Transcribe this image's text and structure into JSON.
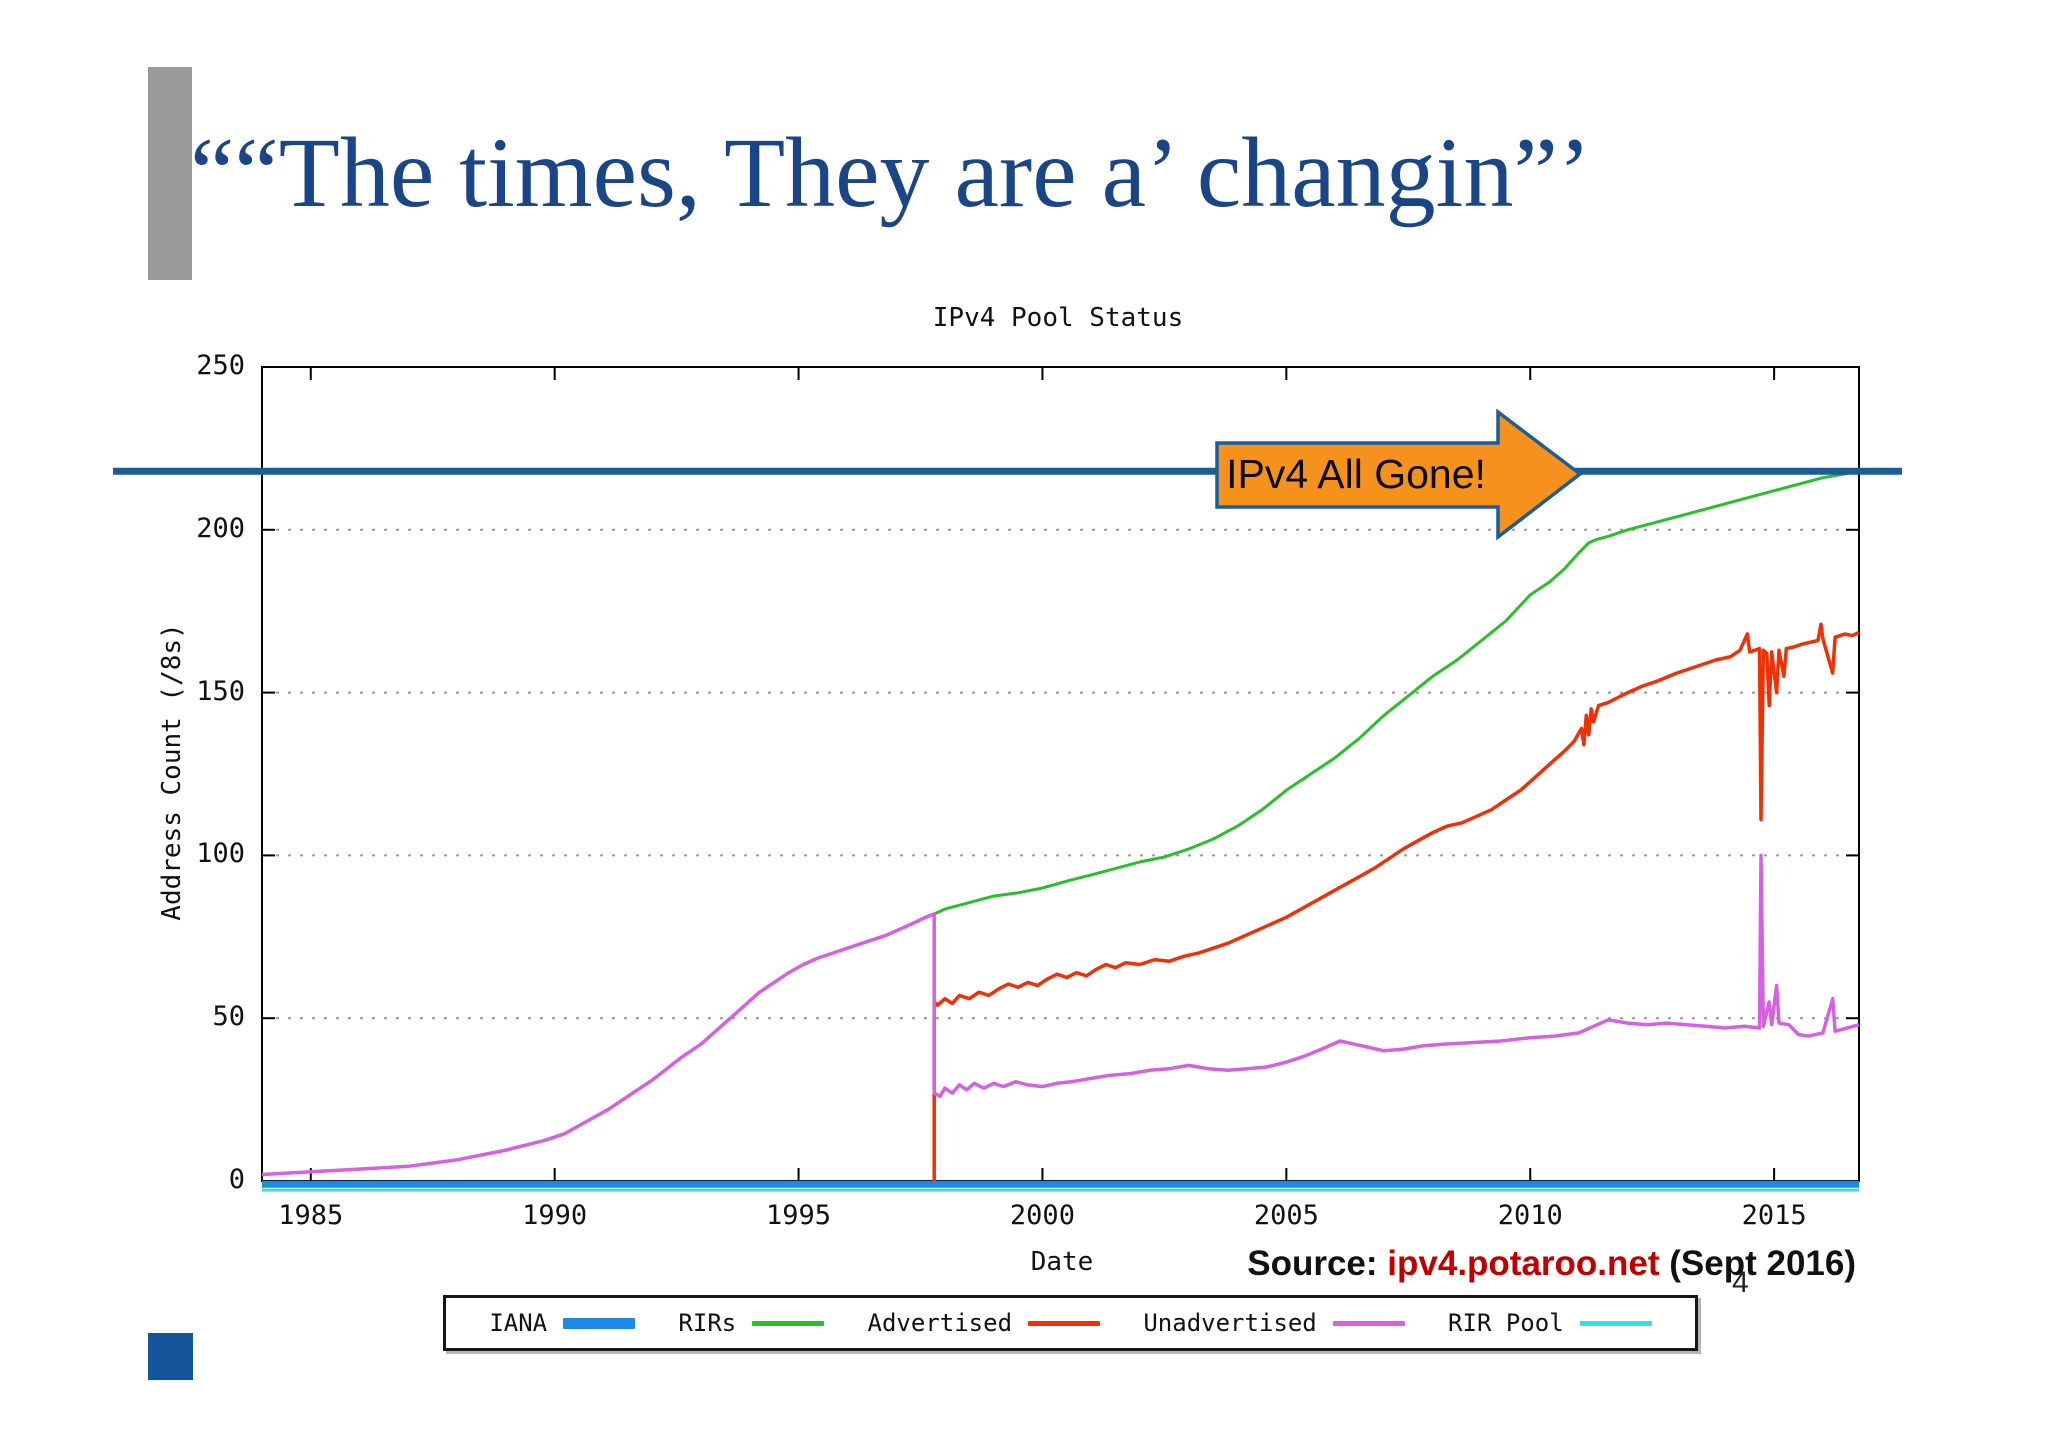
{
  "slide": {
    "title": "““The times, They are a’ changin”’",
    "page_number": "4"
  },
  "source": {
    "prefix": "Source: ",
    "link": "ipv4.potaroo.net",
    "suffix": " (Sept 2016)"
  },
  "annotation": {
    "label": "IPv4 All Gone!",
    "value": 218
  },
  "colors": {
    "title": "#1a4586",
    "annotation_line": "#1d5d96",
    "arrow_fill": "#f5921e",
    "arrow_border": "#1d5d96",
    "source_link": "#c00000",
    "gray_bar": "#9a9a9a",
    "blue_square": "#13549b",
    "grid": "#9a9a9a",
    "frame": "#000000"
  },
  "chart_data": {
    "type": "line",
    "title": "IPv4 Pool Status",
    "xlabel": "Date",
    "ylabel": "Address Count (/8s)",
    "xlim": [
      1984,
      2016.74
    ],
    "ylim": [
      0,
      250
    ],
    "x_ticks": [
      1985,
      1990,
      1995,
      2000,
      2005,
      2010,
      2015
    ],
    "y_ticks": [
      0,
      50,
      100,
      150,
      200,
      250
    ],
    "grid": "horizontal-dashed",
    "legend_position": "bottom",
    "series": [
      {
        "name": "IANA",
        "color": "#1e88e5",
        "width": 7,
        "points": [
          [
            1984,
            -1.0
          ],
          [
            2016.74,
            -1.0
          ]
        ]
      },
      {
        "name": "RIRs",
        "color": "#2abf2a",
        "width": 3,
        "points": [
          [
            1997.78,
            82
          ],
          [
            1998,
            83.5
          ],
          [
            1998.5,
            85.5
          ],
          [
            1999,
            87.5
          ],
          [
            1999.5,
            88.5
          ],
          [
            2000,
            90
          ],
          [
            2000.6,
            92.5
          ],
          [
            2001,
            94
          ],
          [
            2001.5,
            96
          ],
          [
            2002,
            98
          ],
          [
            2002.5,
            99.5
          ],
          [
            2003,
            102
          ],
          [
            2003.5,
            105
          ],
          [
            2004,
            109
          ],
          [
            2004.5,
            114
          ],
          [
            2005,
            120
          ],
          [
            2005.5,
            125
          ],
          [
            2006,
            130
          ],
          [
            2006.5,
            136
          ],
          [
            2007,
            143
          ],
          [
            2007.5,
            149
          ],
          [
            2008,
            155
          ],
          [
            2008.5,
            160
          ],
          [
            2009,
            166
          ],
          [
            2009.5,
            172
          ],
          [
            2010,
            180
          ],
          [
            2010.4,
            184
          ],
          [
            2010.7,
            188
          ],
          [
            2011,
            193
          ],
          [
            2011.2,
            196
          ],
          [
            2011.35,
            197
          ],
          [
            2011.6,
            198
          ],
          [
            2012,
            200
          ],
          [
            2012.5,
            202
          ],
          [
            2013,
            204
          ],
          [
            2013.5,
            206
          ],
          [
            2014,
            208
          ],
          [
            2014.5,
            210
          ],
          [
            2015,
            212
          ],
          [
            2015.5,
            214
          ],
          [
            2016,
            216
          ],
          [
            2016.4,
            217
          ],
          [
            2016.74,
            218
          ]
        ]
      },
      {
        "name": "Advertised",
        "color": "#ef3107",
        "width": 3.5,
        "points": [
          [
            1997.78,
            0
          ],
          [
            1997.78,
            55
          ],
          [
            1997.85,
            54
          ],
          [
            1998,
            56
          ],
          [
            1998.15,
            54.5
          ],
          [
            1998.3,
            57
          ],
          [
            1998.5,
            56
          ],
          [
            1998.7,
            58
          ],
          [
            1998.9,
            57
          ],
          [
            1999.1,
            59
          ],
          [
            1999.3,
            60.5
          ],
          [
            1999.5,
            59.5
          ],
          [
            1999.7,
            61
          ],
          [
            1999.9,
            60
          ],
          [
            2000.1,
            62
          ],
          [
            2000.3,
            63.5
          ],
          [
            2000.5,
            62.5
          ],
          [
            2000.7,
            64
          ],
          [
            2000.9,
            63
          ],
          [
            2001.1,
            65
          ],
          [
            2001.3,
            66.5
          ],
          [
            2001.5,
            65.5
          ],
          [
            2001.7,
            67
          ],
          [
            2002,
            66.5
          ],
          [
            2002.3,
            68
          ],
          [
            2002.6,
            67.5
          ],
          [
            2002.9,
            69
          ],
          [
            2003.2,
            70
          ],
          [
            2003.5,
            71.5
          ],
          [
            2003.8,
            73
          ],
          [
            2004.1,
            75
          ],
          [
            2004.4,
            77
          ],
          [
            2004.7,
            79
          ],
          [
            2005,
            81
          ],
          [
            2005.3,
            83.5
          ],
          [
            2005.6,
            86
          ],
          [
            2005.9,
            88.5
          ],
          [
            2006.2,
            91
          ],
          [
            2006.5,
            93.5
          ],
          [
            2006.8,
            96
          ],
          [
            2007.1,
            99
          ],
          [
            2007.4,
            102
          ],
          [
            2007.7,
            104.5
          ],
          [
            2008,
            107
          ],
          [
            2008.3,
            109
          ],
          [
            2008.6,
            110
          ],
          [
            2008.9,
            112
          ],
          [
            2009.2,
            114
          ],
          [
            2009.5,
            117
          ],
          [
            2009.8,
            120
          ],
          [
            2010.1,
            124
          ],
          [
            2010.4,
            128
          ],
          [
            2010.7,
            132
          ],
          [
            2010.9,
            135
          ],
          [
            2011.05,
            139
          ],
          [
            2011.1,
            134
          ],
          [
            2011.15,
            143
          ],
          [
            2011.2,
            137
          ],
          [
            2011.25,
            145
          ],
          [
            2011.3,
            141
          ],
          [
            2011.4,
            146
          ],
          [
            2011.6,
            147
          ],
          [
            2011.8,
            148.5
          ],
          [
            2012,
            150
          ],
          [
            2012.3,
            152
          ],
          [
            2012.6,
            153.5
          ],
          [
            2013,
            156
          ],
          [
            2013.4,
            158
          ],
          [
            2013.8,
            160
          ],
          [
            2014.1,
            161
          ],
          [
            2014.3,
            163
          ],
          [
            2014.45,
            168
          ],
          [
            2014.5,
            162.5
          ],
          [
            2014.6,
            163
          ],
          [
            2014.7,
            163.5
          ],
          [
            2014.73,
            111
          ],
          [
            2014.78,
            163
          ],
          [
            2014.85,
            162
          ],
          [
            2014.9,
            146
          ],
          [
            2014.95,
            162.5
          ],
          [
            2015.05,
            150
          ],
          [
            2015.1,
            163
          ],
          [
            2015.2,
            155
          ],
          [
            2015.25,
            163.5
          ],
          [
            2015.4,
            164
          ],
          [
            2015.6,
            165
          ],
          [
            2015.9,
            166
          ],
          [
            2015.96,
            171
          ],
          [
            2016,
            166.5
          ],
          [
            2016.2,
            156
          ],
          [
            2016.25,
            167
          ],
          [
            2016.45,
            168
          ],
          [
            2016.6,
            167.5
          ],
          [
            2016.74,
            168.5
          ]
        ]
      },
      {
        "name": "Unadvertised",
        "color": "#d461e0",
        "width": 3.5,
        "points": [
          [
            1984,
            2
          ],
          [
            1984.6,
            2.5
          ],
          [
            1985.2,
            3
          ],
          [
            1985.8,
            3.5
          ],
          [
            1986.4,
            4
          ],
          [
            1987,
            4.5
          ],
          [
            1987.5,
            5.5
          ],
          [
            1988,
            6.5
          ],
          [
            1988.5,
            8
          ],
          [
            1989,
            9.5
          ],
          [
            1989.4,
            11
          ],
          [
            1989.8,
            12.5
          ],
          [
            1990.2,
            14.5
          ],
          [
            1990.5,
            17
          ],
          [
            1990.8,
            19.5
          ],
          [
            1991.1,
            22
          ],
          [
            1991.4,
            25
          ],
          [
            1991.7,
            28
          ],
          [
            1992,
            31
          ],
          [
            1992.3,
            34.5
          ],
          [
            1992.6,
            38
          ],
          [
            1993,
            42
          ],
          [
            1993.3,
            46
          ],
          [
            1993.6,
            50
          ],
          [
            1993.9,
            54
          ],
          [
            1994.2,
            58
          ],
          [
            1994.5,
            61
          ],
          [
            1994.8,
            64
          ],
          [
            1995.1,
            66.5
          ],
          [
            1995.4,
            68.5
          ],
          [
            1995.7,
            70
          ],
          [
            1996,
            71.5
          ],
          [
            1996.4,
            73.5
          ],
          [
            1996.8,
            75.5
          ],
          [
            1997.1,
            77.5
          ],
          [
            1997.4,
            79.5
          ],
          [
            1997.6,
            81
          ],
          [
            1997.78,
            82
          ],
          [
            1997.78,
            27
          ],
          [
            1997.9,
            26
          ],
          [
            1998,
            28.5
          ],
          [
            1998.15,
            27
          ],
          [
            1998.3,
            29.5
          ],
          [
            1998.45,
            28
          ],
          [
            1998.6,
            30
          ],
          [
            1998.8,
            28.5
          ],
          [
            1999,
            30
          ],
          [
            1999.2,
            29
          ],
          [
            1999.45,
            30.5
          ],
          [
            1999.7,
            29.5
          ],
          [
            2000,
            29
          ],
          [
            2000.3,
            30
          ],
          [
            2000.6,
            30.5
          ],
          [
            2001,
            31.5
          ],
          [
            2001.4,
            32.5
          ],
          [
            2001.8,
            33
          ],
          [
            2002.2,
            34
          ],
          [
            2002.6,
            34.5
          ],
          [
            2003,
            35.5
          ],
          [
            2003.4,
            34.5
          ],
          [
            2003.8,
            34
          ],
          [
            2004.2,
            34.5
          ],
          [
            2004.6,
            35
          ],
          [
            2005,
            36.5
          ],
          [
            2005.4,
            38.5
          ],
          [
            2005.8,
            41
          ],
          [
            2006.1,
            43
          ],
          [
            2006.4,
            42
          ],
          [
            2006.7,
            41
          ],
          [
            2007,
            40
          ],
          [
            2007.4,
            40.5
          ],
          [
            2007.8,
            41.5
          ],
          [
            2008.2,
            42
          ],
          [
            2008.8,
            42.5
          ],
          [
            2009.4,
            43
          ],
          [
            2010,
            44
          ],
          [
            2010.5,
            44.5
          ],
          [
            2011,
            45.5
          ],
          [
            2011.3,
            47.5
          ],
          [
            2011.6,
            49.5
          ],
          [
            2012,
            48.5
          ],
          [
            2012.4,
            48
          ],
          [
            2012.8,
            48.5
          ],
          [
            2013.2,
            48
          ],
          [
            2013.6,
            47.5
          ],
          [
            2014,
            47
          ],
          [
            2014.4,
            47.5
          ],
          [
            2014.7,
            47
          ],
          [
            2014.73,
            100
          ],
          [
            2014.78,
            47.5
          ],
          [
            2014.9,
            55
          ],
          [
            2014.95,
            48
          ],
          [
            2015.05,
            60
          ],
          [
            2015.1,
            48.5
          ],
          [
            2015.3,
            48
          ],
          [
            2015.5,
            45
          ],
          [
            2015.7,
            44.5
          ],
          [
            2016,
            45.5
          ],
          [
            2016.2,
            56
          ],
          [
            2016.25,
            46
          ],
          [
            2016.5,
            47
          ],
          [
            2016.74,
            48
          ]
        ]
      },
      {
        "name": "RIR Pool",
        "color": "#35e0e0",
        "width": 3,
        "points": [
          [
            1984,
            -2.8
          ],
          [
            2016.74,
            -2.8
          ]
        ]
      }
    ]
  }
}
